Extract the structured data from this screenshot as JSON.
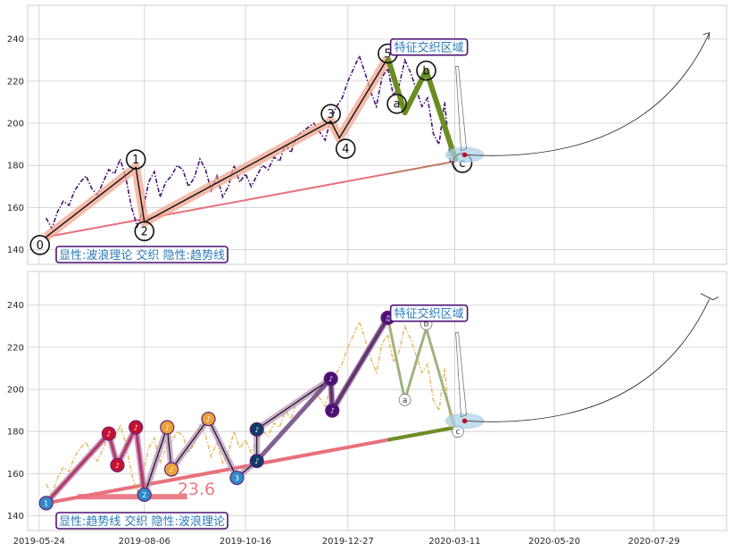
{
  "colors": {
    "grid": "#cccccc",
    "background": "#ffffff",
    "price": "#4b1175",
    "price_bottom": "#e0a93c",
    "trend": "#e8707c",
    "wave_band": "#f2a58e",
    "wave_line": "#111111",
    "correction": "#6b8e23",
    "correction_bottom": "#9fb37f",
    "box_border": "#4b1175",
    "box_text": "#2a7ab8",
    "ellipse": "#a8cfe6",
    "marker_red": "#c8102e",
    "marker_purple": "#4b1175",
    "marker_orange": "#e8a33a",
    "marker_blue": "#2e8bc9",
    "marker_navy": "#0d3b66"
  },
  "chart_data": [
    {
      "type": "line",
      "panel": "top",
      "x_tick_labels": [
        "2019-05-24",
        "2019-08-06",
        "2019-10-16",
        "2019-12-27",
        "2020-03-11",
        "2020-05-20",
        "2020-07-29"
      ],
      "x_ticks": [
        "2019-05-24",
        "2019-08-06",
        "2019-10-16",
        "2019-12-27",
        "2020-03-11",
        "2020-05-20",
        "2020-07-29"
      ],
      "xlim": [
        "2019-05-16",
        "2020-09-18"
      ],
      "yticks": [
        140,
        160,
        180,
        200,
        220,
        240
      ],
      "ylim": [
        133,
        256
      ],
      "grid": true,
      "price_series": {
        "x": [
          "2019-05-29",
          "2019-06-02",
          "2019-06-06",
          "2019-06-10",
          "2019-06-14",
          "2019-06-18",
          "2019-06-22",
          "2019-06-26",
          "2019-06-30",
          "2019-07-04",
          "2019-07-08",
          "2019-07-12",
          "2019-07-16",
          "2019-07-20",
          "2019-07-24",
          "2019-07-28",
          "2019-08-01",
          "2019-08-05",
          "2019-08-09",
          "2019-08-13",
          "2019-08-17",
          "2019-08-21",
          "2019-08-25",
          "2019-08-29",
          "2019-09-02",
          "2019-09-06",
          "2019-09-10",
          "2019-09-14",
          "2019-09-18",
          "2019-09-22",
          "2019-09-26",
          "2019-09-30",
          "2019-10-04",
          "2019-10-08",
          "2019-10-12",
          "2019-10-16",
          "2019-10-20",
          "2019-10-24",
          "2019-10-28",
          "2019-11-01",
          "2019-11-05",
          "2019-11-09",
          "2019-11-13",
          "2019-11-17",
          "2019-11-21",
          "2019-11-25",
          "2019-11-29",
          "2019-12-03",
          "2019-12-07",
          "2019-12-11",
          "2019-12-15",
          "2019-12-19",
          "2019-12-23",
          "2019-12-27",
          "2019-12-31",
          "2020-01-04",
          "2020-01-08",
          "2020-01-12",
          "2020-01-16",
          "2020-01-20",
          "2020-01-24",
          "2020-01-28",
          "2020-02-01",
          "2020-02-05",
          "2020-02-09",
          "2020-02-13",
          "2020-02-17",
          "2020-02-21",
          "2020-02-25",
          "2020-02-29",
          "2020-03-04",
          "2020-03-08",
          "2020-03-12"
        ],
        "y": [
          155,
          150,
          158,
          163,
          161,
          168,
          172,
          175,
          169,
          166,
          172,
          178,
          176,
          183,
          174,
          160,
          151,
          159,
          172,
          177,
          165,
          172,
          175,
          180,
          178,
          170,
          174,
          183,
          178,
          168,
          175,
          165,
          170,
          180,
          172,
          176,
          170,
          175,
          180,
          178,
          184,
          182,
          190,
          186,
          194,
          196,
          198,
          200,
          196,
          192,
          202,
          208,
          212,
          220,
          226,
          232,
          224,
          215,
          208,
          222,
          226,
          213,
          218,
          230,
          224,
          216,
          208,
          212,
          195,
          190,
          210,
          182,
          178
        ]
      },
      "wave_points": [
        {
          "label": "0",
          "x": "2019-05-29",
          "y": 146
        },
        {
          "label": "1",
          "x": "2019-07-31",
          "y": 179
        },
        {
          "label": "2",
          "x": "2019-08-06",
          "y": 153
        },
        {
          "label": "3",
          "x": "2019-12-15",
          "y": 201
        },
        {
          "label": "4",
          "x": "2019-12-21",
          "y": 193
        },
        {
          "label": "5",
          "x": "2020-01-24",
          "y": 231
        }
      ],
      "correction_points": [
        {
          "label": "a",
          "x": "2020-02-05",
          "y": 205
        },
        {
          "label": "b",
          "x": "2020-02-20",
          "y": 225
        },
        {
          "label": "c",
          "x": "2020-03-12",
          "y": 182
        }
      ],
      "trend_line": {
        "x": [
          "2019-05-29",
          "2020-03-12"
        ],
        "y": [
          146,
          182
        ]
      },
      "target_arrow": {
        "x": [
          "2020-03-18",
          "2020-09-06"
        ],
        "y": [
          185,
          243
        ]
      },
      "box_label": "显性:波浪理论 交织 隐性:趋势线",
      "area_label": "特征交织区域"
    },
    {
      "type": "line",
      "panel": "bottom",
      "x_tick_labels": [
        "2019-05-24",
        "2019-08-06",
        "2019-10-16",
        "2019-12-27",
        "2020-03-11",
        "2020-05-20",
        "2020-07-29"
      ],
      "x_ticks": [
        "2019-05-24",
        "2019-08-06",
        "2019-10-16",
        "2019-12-27",
        "2020-03-11",
        "2020-05-20",
        "2020-07-29"
      ],
      "xlim": [
        "2019-05-16",
        "2020-09-18"
      ],
      "yticks": [
        140,
        160,
        180,
        200,
        220,
        240
      ],
      "ylim": [
        133,
        256
      ],
      "grid": true,
      "swing_points": [
        {
          "x": "2019-05-29",
          "y": 146,
          "color": "marker_blue",
          "label": "1"
        },
        {
          "x": "2019-07-12",
          "y": 179,
          "color": "marker_red",
          "label": "♪"
        },
        {
          "x": "2019-07-18",
          "y": 164,
          "color": "marker_red",
          "label": "♪"
        },
        {
          "x": "2019-07-31",
          "y": 182,
          "color": "marker_red",
          "label": "♪"
        },
        {
          "x": "2019-08-06",
          "y": 150,
          "color": "marker_blue",
          "label": "2"
        },
        {
          "x": "2019-08-22",
          "y": 182,
          "color": "marker_orange",
          "label": "♪"
        },
        {
          "x": "2019-08-25",
          "y": 162,
          "color": "marker_orange",
          "label": "♪"
        },
        {
          "x": "2019-09-20",
          "y": 186,
          "color": "marker_orange",
          "label": "♪"
        },
        {
          "x": "2019-10-10",
          "y": 158,
          "color": "marker_blue",
          "label": "3"
        },
        {
          "x": "2019-10-24",
          "y": 166,
          "color": "marker_navy",
          "label": "♪"
        },
        {
          "x": "2019-10-24",
          "y": 181,
          "color": "marker_navy",
          "label": "♪"
        },
        {
          "x": "2019-12-15",
          "y": 205,
          "color": "marker_purple",
          "label": "♪"
        },
        {
          "x": "2019-12-16",
          "y": 190,
          "color": "marker_purple",
          "label": "♪"
        },
        {
          "x": "2020-01-24",
          "y": 234,
          "color": "marker_purple",
          "label": "♫"
        }
      ],
      "correction_points": [
        {
          "label": "a",
          "x": "2020-02-05",
          "y": 195
        },
        {
          "label": "b",
          "x": "2020-02-20",
          "y": 229
        },
        {
          "label": "c",
          "x": "2020-03-12",
          "y": 180
        }
      ],
      "trend_line": {
        "x": [
          "2019-05-29",
          "2020-03-12"
        ],
        "y": [
          146,
          182
        ]
      },
      "target_arrow": {
        "x": [
          "2020-03-18",
          "2020-09-06"
        ],
        "y": [
          185,
          243
        ]
      },
      "annotation_value": "23.6",
      "box_label": "显性:趋势线 交织 隐性:波浪理论",
      "area_label": "特征交织区域"
    }
  ]
}
